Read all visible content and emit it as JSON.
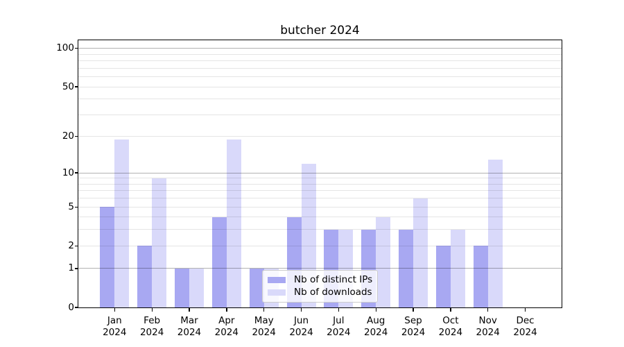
{
  "chart_data": {
    "type": "bar",
    "title": "butcher 2024",
    "categories": [
      "Jan\n2024",
      "Feb\n2024",
      "Mar\n2024",
      "Apr\n2024",
      "May\n2024",
      "Jun\n2024",
      "Jul\n2024",
      "Aug\n2024",
      "Sep\n2024",
      "Oct\n2024",
      "Nov\n2024",
      "Dec\n2024"
    ],
    "months": [
      "Jan",
      "Feb",
      "Mar",
      "Apr",
      "May",
      "Jun",
      "Jul",
      "Aug",
      "Sep",
      "Oct",
      "Nov",
      "Dec"
    ],
    "year": "2024",
    "series": [
      {
        "name": "Nb of distinct IPs",
        "key": "distinct-ips",
        "color": "#a8a8f2",
        "values": [
          5,
          2,
          1,
          4,
          1,
          4,
          3,
          3,
          3,
          2,
          2,
          0
        ]
      },
      {
        "name": "Nb of downloads",
        "key": "downloads",
        "color": "#d9d9fa",
        "values": [
          19,
          9,
          1,
          19,
          1,
          12,
          3,
          4,
          6,
          3,
          13,
          0
        ]
      }
    ],
    "y_axis": {
      "scale": "log10(value+1)",
      "tick_values": [
        0,
        1,
        2,
        5,
        10,
        20,
        50,
        100
      ],
      "major_gridlines": [
        1,
        10,
        100
      ],
      "minor_gridlines": [
        2,
        3,
        4,
        5,
        6,
        7,
        8,
        9,
        20,
        30,
        40,
        50,
        60,
        70,
        80,
        90
      ],
      "ylim": [
        0,
        116
      ]
    },
    "legend": {
      "position": "lower center"
    },
    "colors": {
      "axis": "#000000",
      "major_grid": "rgba(0,0,0,0.30)",
      "minor_grid": "rgba(0,0,0,0.10)",
      "background": "#ffffff"
    },
    "grid": true
  }
}
